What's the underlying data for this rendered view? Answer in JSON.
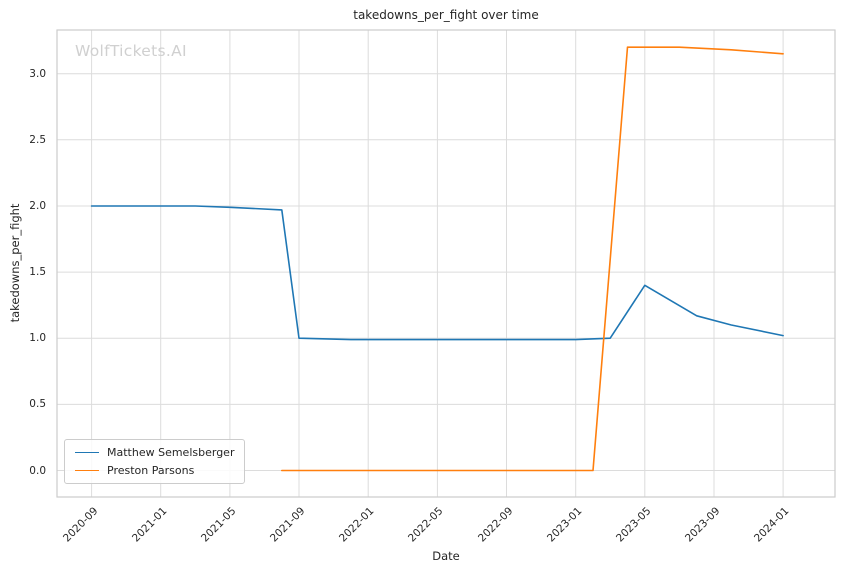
{
  "chart_data": {
    "type": "line",
    "title": "takedowns_per_fight over time",
    "xlabel": "Date",
    "ylabel": "takedowns_per_fight",
    "watermark": "WolfTickets.AI",
    "grid": true,
    "legend_position": "lower left",
    "x_tick_rotation_deg": 45,
    "x_tick_labels": [
      "2020-09",
      "2021-01",
      "2021-05",
      "2021-09",
      "2022-01",
      "2022-05",
      "2022-09",
      "2023-01",
      "2023-05",
      "2023-09",
      "2024-01"
    ],
    "y_ticks": [
      0.0,
      0.5,
      1.0,
      1.5,
      2.0,
      2.5,
      3.0
    ],
    "x_range_months": [
      "2020-07",
      "2024-04"
    ],
    "ylim": [
      -0.2,
      3.33
    ],
    "series": [
      {
        "name": "Matthew Semelsberger",
        "color": "#1f77b4",
        "points": [
          {
            "x": "2020-09",
            "y": 2.0
          },
          {
            "x": "2021-03",
            "y": 2.0
          },
          {
            "x": "2021-05",
            "y": 1.99
          },
          {
            "x": "2021-08",
            "y": 1.97
          },
          {
            "x": "2021-09",
            "y": 1.0
          },
          {
            "x": "2021-12",
            "y": 0.99
          },
          {
            "x": "2022-10",
            "y": 0.99
          },
          {
            "x": "2023-01",
            "y": 0.99
          },
          {
            "x": "2023-03",
            "y": 1.0
          },
          {
            "x": "2023-05",
            "y": 1.4
          },
          {
            "x": "2023-08",
            "y": 1.17
          },
          {
            "x": "2023-10",
            "y": 1.1
          },
          {
            "x": "2024-01",
            "y": 1.02
          }
        ]
      },
      {
        "name": "Preston Parsons",
        "color": "#ff7f0e",
        "points": [
          {
            "x": "2021-08",
            "y": 0.0
          },
          {
            "x": "2023-02",
            "y": 0.0
          },
          {
            "x": "2023-04",
            "y": 3.2
          },
          {
            "x": "2023-07",
            "y": 3.2
          },
          {
            "x": "2023-10",
            "y": 3.18
          },
          {
            "x": "2024-01",
            "y": 3.15
          }
        ]
      }
    ]
  }
}
